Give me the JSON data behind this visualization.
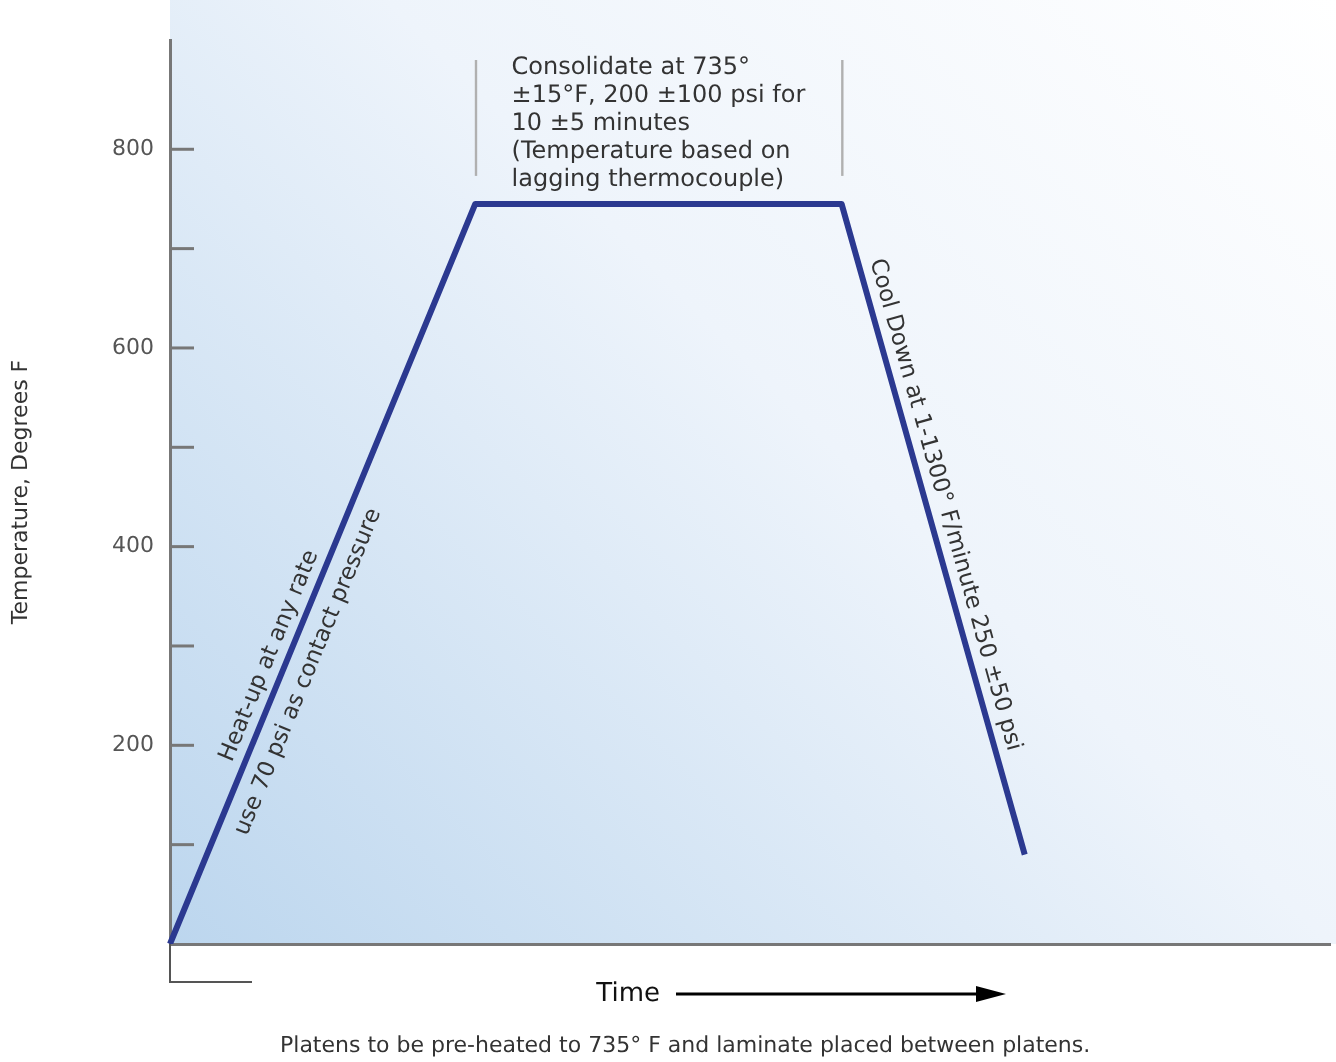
{
  "chart_data": {
    "type": "line",
    "ylabel": "Temperature, Degrees F",
    "xlabel": "Time",
    "categories": [
      null,
      null,
      null,
      null,
      null,
      null,
      null,
      null,
      null,
      null,
      null,
      null,
      null,
      null,
      null,
      null,
      null,
      null,
      null,
      null
    ],
    "series": [
      {
        "color": "#2b3990",
        "values": [
          0,
          149,
          298,
          447,
          596,
          745,
          745,
          745,
          745,
          745,
          745,
          745,
          527,
          308,
          90,
          null,
          null,
          null,
          null,
          null
        ]
      }
    ],
    "ylim": [
      0,
      910
    ],
    "yticks": [
      {
        "value": 100,
        "label": null
      },
      200,
      {
        "value": 300,
        "label": null
      },
      400,
      {
        "value": 500,
        "label": null
      },
      600,
      {
        "value": 700,
        "label": null
      },
      800
    ],
    "tick_labels": "y",
    "grid": false,
    "legend": false,
    "marker": "none",
    "line_style": "solid",
    "annotations": [
      "Consolidate at 735° ±15°F, 200 ±100 psi for 10 ±5 minutes (Temperature based on lagging thermocouple)",
      "Heat-up at any rate\nuse 70 psi as contact pressure",
      "Cool Down at 1-1300° F/minute 250 ±50 psi",
      "Platens to be pre-heated to 735° F and laminate placed between platens."
    ]
  }
}
